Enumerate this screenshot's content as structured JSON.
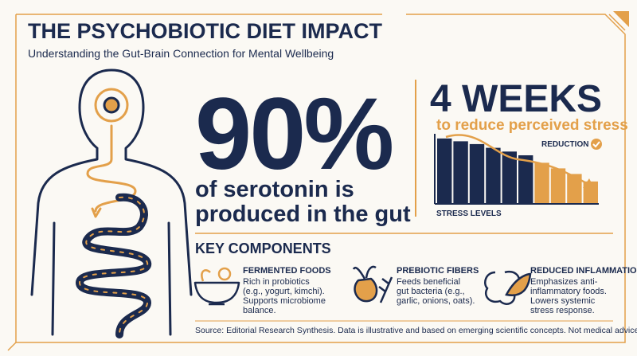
{
  "header": {
    "title": "THE PSYCHOBIOTIC DIET IMPACT",
    "subtitle": "Understanding the Gut-Brain Connection for Mental Wellbeing"
  },
  "hero": {
    "stat": "90%",
    "caption": [
      "of serotonin is",
      "produced in the gut"
    ]
  },
  "weeks": {
    "headline": "4 WEEKS",
    "caption": "to reduce perceived stress"
  },
  "stress_chart": {
    "type": "bar",
    "x_label": "STRESS LEVELS",
    "annotation": "REDUCTION",
    "values": [
      70,
      67,
      64,
      60,
      56,
      52,
      44,
      38,
      32,
      24
    ],
    "colors": [
      "#1b2a4e",
      "#1b2a4e",
      "#1b2a4e",
      "#1b2a4e",
      "#1b2a4e",
      "#1b2a4e",
      "#e3a04a",
      "#e3a04a",
      "#e3a04a",
      "#e3a04a"
    ],
    "ylim": [
      0,
      75
    ]
  },
  "components": {
    "title": "KEY COMPONENTS",
    "items": [
      {
        "title": "FERMENTED FOODS",
        "lines": [
          "Rich in probiotics",
          "(e.g., yogurt, kimchi).",
          "Supports microbiome",
          "balance."
        ]
      },
      {
        "title": "PREBIOTIC FIBERS",
        "lines": [
          "Feeds beneficial",
          "gut bacteria (e.g.,",
          "garlic, onions, oats)."
        ]
      },
      {
        "title": "REDUCED INFLAMMATION",
        "lines": [
          "Emphasizes anti-",
          "inflammatory foods.",
          "Lowers systemic",
          "stress response."
        ]
      }
    ]
  },
  "source": "Source: Editorial Research Synthesis. Data is illustrative and based on emerging scientific concepts. Not medical advice."
}
